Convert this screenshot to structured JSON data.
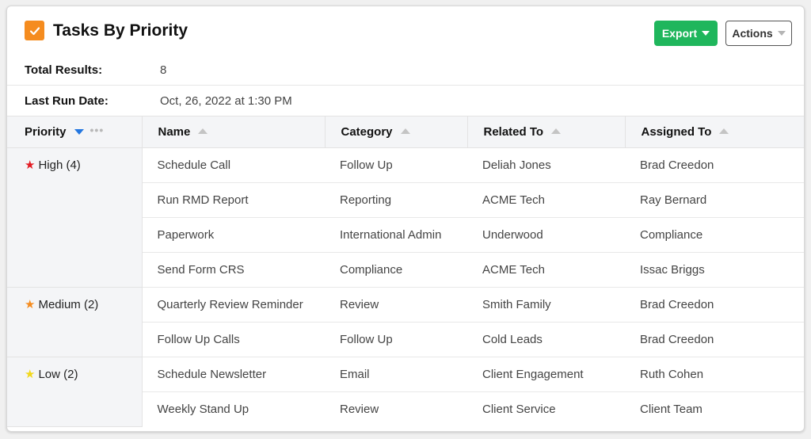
{
  "header": {
    "title": "Tasks By Priority",
    "export_label": "Export",
    "actions_label": "Actions",
    "icon": "check-icon",
    "icon_color": "#f58c1f",
    "export_color": "#1fb65c"
  },
  "meta": {
    "total_label": "Total Results:",
    "total_value": "8",
    "last_run_label": "Last Run Date:",
    "last_run_value": "Oct, 26, 2022 at 1:30 PM"
  },
  "table": {
    "columns": [
      "Priority",
      "Name",
      "Category",
      "Related To",
      "Assigned To"
    ],
    "groups": [
      {
        "label": "High (4)",
        "star_color": "#e31b23",
        "rows": [
          [
            "Schedule Call",
            "Follow Up",
            "Deliah Jones",
            "Brad Creedon"
          ],
          [
            "Run RMD Report",
            "Reporting",
            "ACME Tech",
            "Ray Bernard"
          ],
          [
            "Paperwork",
            "International Admin",
            "Underwood",
            "Compliance"
          ],
          [
            "Send Form CRS",
            "Compliance",
            "ACME Tech",
            "Issac Briggs"
          ]
        ]
      },
      {
        "label": "Medium (2)",
        "star_color": "#f58c1f",
        "rows": [
          [
            "Quarterly Review Reminder",
            "Review",
            "Smith Family",
            "Brad Creedon"
          ],
          [
            "Follow Up Calls",
            "Follow Up",
            "Cold Leads",
            "Brad Creedon"
          ]
        ]
      },
      {
        "label": "Low (2)",
        "star_color": "#f2d81c",
        "rows": [
          [
            "Schedule Newsletter",
            "Email",
            "Client Engagement",
            "Ruth Cohen"
          ],
          [
            "Weekly Stand Up",
            "Review",
            "Client Service",
            "Client Team"
          ]
        ]
      }
    ]
  }
}
